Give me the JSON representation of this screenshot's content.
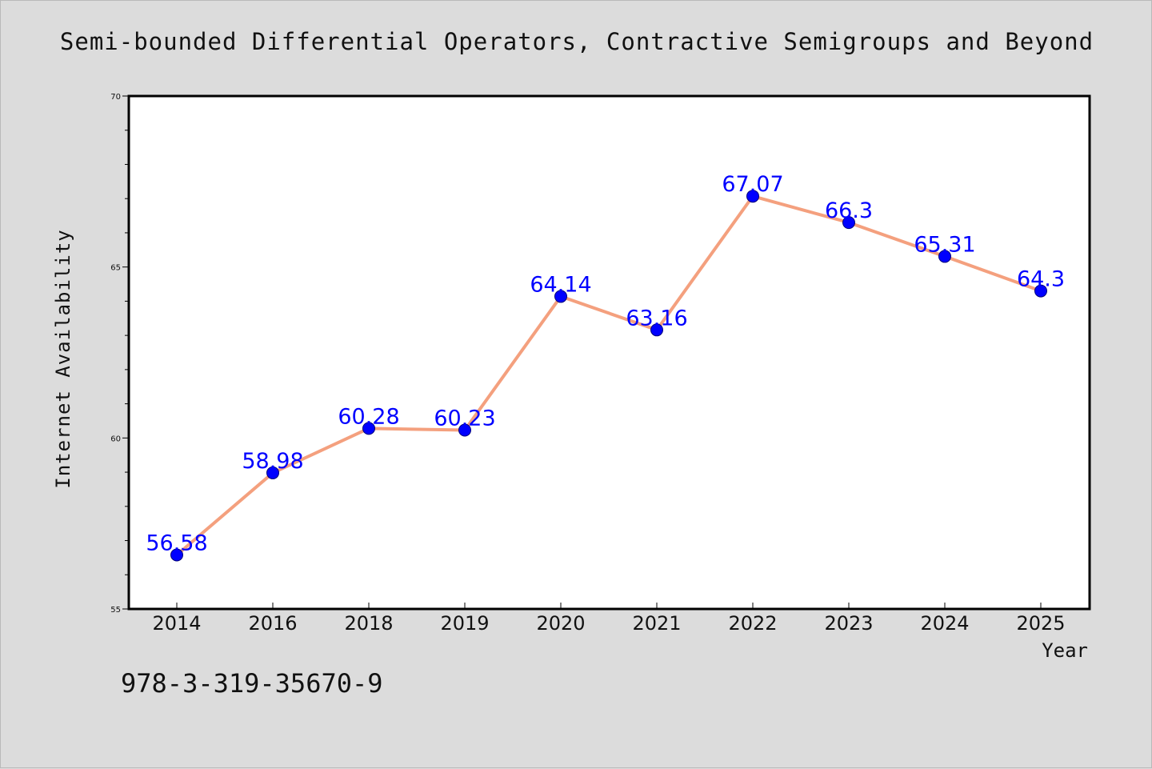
{
  "footer": {
    "identifier": "978-3-319-35670-9"
  },
  "colors": {
    "background": "#dcdcdc",
    "plot_background": "#ffffff",
    "line": "#f4a07e",
    "marker": "#0000ff",
    "marker_edge": "#00007a",
    "data_label": "#0000ff",
    "text": "#111111"
  },
  "chart_data": {
    "type": "line",
    "title": "Semi-bounded Differential Operators, Contractive Semigroups and Beyond",
    "xlabel": "Year",
    "ylabel": "Internet Availability",
    "categories": [
      "2014",
      "2016",
      "2018",
      "2019",
      "2020",
      "2021",
      "2022",
      "2023",
      "2024",
      "2025"
    ],
    "series": [
      {
        "values": [
          56.58,
          58.98,
          60.28,
          60.23,
          64.14,
          63.16,
          67.07,
          66.3,
          65.31,
          64.3
        ],
        "labels": [
          "56.58",
          "58.98",
          "60.28",
          "60.23",
          "64.14",
          "63.16",
          "67.07",
          "66.3",
          "65.31",
          "64.3"
        ]
      }
    ],
    "ylim": [
      55,
      70
    ],
    "yticks": [
      55,
      60,
      65,
      70
    ],
    "ytick_labels": [
      "55",
      "60",
      "65",
      "70"
    ],
    "y_minor_step": 1,
    "grid": false,
    "legend": "none"
  }
}
